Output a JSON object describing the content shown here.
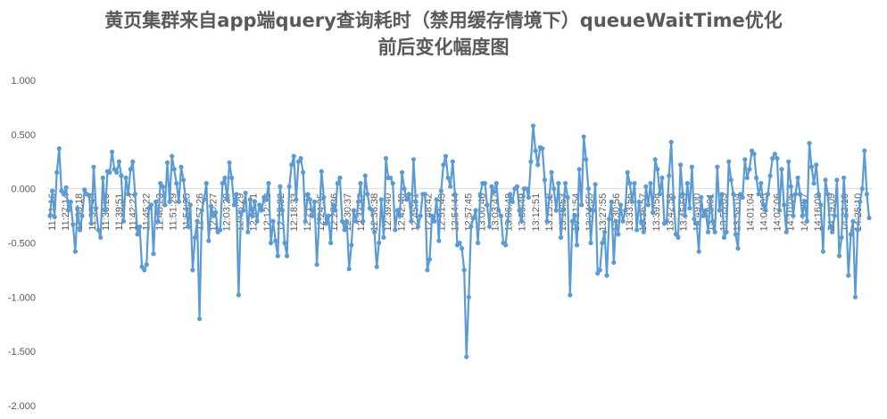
{
  "chart_data": {
    "type": "line",
    "title_line1": "黄页集群来自app端query查询耗时（禁用缓存情境下）queueWaitTime优化",
    "title_line2": "前后变化幅度图",
    "xlabel": "",
    "ylabel": "",
    "ylim": [
      -2.0,
      1.0
    ],
    "yticks": [
      "1.000",
      "0.500",
      "0.000",
      "-0.500",
      "-1.000",
      "-1.500",
      "-2.000"
    ],
    "grid": false,
    "legend": "none",
    "series_color": "#5B9BD5",
    "xtick_labels": [
      "11:21:16",
      "11:27:14",
      "11:30:18",
      "11:33:49",
      "11:36:20",
      "11:39:51",
      "11:42:22",
      "11:45:22",
      "11:48:23",
      "11:51:29",
      "11:54:25",
      "11:57:26",
      "12:00:27",
      "12:03:28",
      "12:06:29",
      "12:09:31",
      "12:12:32",
      "12:15:32",
      "12:18:33",
      "12:21:34",
      "12:24:35",
      "12:27:36",
      "12:30:37",
      "12:33:37",
      "12:36:38",
      "12:39:40",
      "12:42:40",
      "12:45:41",
      "12:48:42",
      "12:51:43",
      "12:54:44",
      "12:57:45",
      "13:00:46",
      "13:03:47",
      "13:06:48",
      "13:09:49",
      "13:12:51",
      "13:15:52",
      "13:18:53",
      "13:21:54",
      "13:24:55",
      "13:27:55",
      "13:30:56",
      "13:33:56",
      "13:36:57",
      "13:39:58",
      "13:42:58",
      "13:45:59",
      "13:49:00",
      "13:52:01",
      "13:55:03",
      "13:58:04",
      "14:01:04",
      "14:04:05",
      "14:07:06",
      "14:10:05",
      "14:13:07",
      "14:16:08",
      "14:19:09",
      "14:22:10",
      "14:25:10"
    ],
    "values": [
      -0.25,
      -0.02,
      -0.26,
      0.15,
      0.37,
      -0.02,
      -0.05,
      0.01,
      -0.2,
      -0.12,
      -0.33,
      -0.58,
      -0.18,
      -0.38,
      -0.25,
      -0.01,
      -0.05,
      -0.06,
      -0.32,
      0.2,
      -0.18,
      -0.38,
      -0.45,
      0.1,
      -0.2,
      0.16,
      0.15,
      0.34,
      0.18,
      0.15,
      0.25,
      0.12,
      -0.3,
      0.1,
      -0.05,
      0.18,
      0.25,
      -0.05,
      -0.42,
      -0.35,
      -0.72,
      -0.75,
      -0.7,
      -0.18,
      -0.15,
      -0.6,
      -0.12,
      -0.3,
      0.05,
      0.02,
      -0.15,
      0.24,
      -0.12,
      0.3,
      0.18,
      0.05,
      -0.12,
      0.2,
      0.08,
      -0.1,
      -0.35,
      -0.15,
      -0.75,
      -0.45,
      -0.3,
      -1.2,
      -0.2,
      -0.1,
      0.05,
      -0.48,
      -0.16,
      -0.25,
      -0.22,
      -0.4,
      -0.38,
      0.05,
      0.1,
      -0.1,
      0.24,
      0.1,
      -0.15,
      -0.05,
      -0.98,
      -0.22,
      -0.2,
      -0.04,
      -0.4,
      -0.1,
      -0.25,
      -0.12,
      -0.3,
      -0.15,
      -0.2,
      -0.08,
      -0.1,
      0.05,
      -0.5,
      -0.3,
      -0.48,
      -0.62,
      0.02,
      -0.2,
      -0.5,
      -0.62,
      0.02,
      0.22,
      0.3,
      -0.1,
      0.25,
      0.28,
      0.15,
      -0.3,
      -0.05,
      -0.1,
      -0.25,
      -0.12,
      -0.7,
      -0.28,
      0.16,
      -0.08,
      -0.32,
      -0.25,
      -0.5,
      -0.15,
      -0.2,
      0.05,
      0.1,
      -0.3,
      -0.38,
      -0.3,
      -0.74,
      -0.52,
      -0.2,
      -0.3,
      -0.12,
      0.05,
      -0.3,
      0.12,
      -0.05,
      -0.18,
      -0.2,
      -0.4,
      -0.72,
      -0.5,
      -0.1,
      -0.45,
      0.28,
      0.1,
      0.1,
      0.05,
      -0.38,
      -0.2,
      -0.25,
      0.15,
      0.0,
      -0.1,
      -0.05,
      -0.3,
      0.27,
      -0.12,
      -0.35,
      -0.25,
      -0.05,
      -0.05,
      -0.75,
      -0.65,
      -0.25,
      -0.3,
      -0.1,
      -0.48,
      -0.02,
      0.22,
      0.3,
      0.1,
      0.02,
      0.25,
      -0.05,
      -0.52,
      -0.5,
      -0.55,
      -0.75,
      -1.55,
      -1.0,
      -0.35,
      -0.27,
      -0.2,
      -0.5,
      -0.05,
      0.05,
      0.05,
      -0.15,
      -0.35,
      0.02,
      -0.03,
      0.05,
      -0.2,
      -0.25,
      -0.5,
      -0.52,
      -0.3,
      -0.05,
      -0.12,
      0.0,
      0.02,
      -0.2,
      -0.3,
      0.0,
      0.0,
      -0.08,
      0.25,
      0.58,
      0.35,
      0.22,
      0.38,
      0.37,
      0.08,
      -0.3,
      -0.08,
      0.15,
      0.0,
      -0.2,
      0.05,
      -0.45,
      -0.2,
      0.05,
      -0.08,
      -0.98,
      -0.3,
      -0.25,
      -0.52,
      0.18,
      -0.15,
      0.48,
      0.27,
      0.0,
      -0.5,
      -0.2,
      0.04,
      -0.78,
      -0.75,
      -0.5,
      -0.4,
      -0.8,
      -0.28,
      -0.12,
      -0.68,
      -0.3,
      -0.42,
      -0.15,
      -0.3,
      -0.2,
      0.15,
      0.05,
      -0.12,
      0.05,
      -0.38,
      -0.12,
      -0.3,
      -0.4,
      0.02,
      -0.15,
      0.05,
      -0.22,
      0.27,
      0.18,
      -0.05,
      0.1,
      -0.32,
      -0.3,
      0.12,
      0.43,
      -0.08,
      -0.42,
      -0.45,
      0.22,
      -0.05,
      -0.25,
      0.05,
      -0.18,
      0.2,
      -0.28,
      -0.32,
      -0.58,
      -0.08,
      -0.25,
      -0.2,
      -0.4,
      -0.08,
      -0.3,
      -0.4,
      0.2,
      -0.2,
      -0.05,
      -0.45,
      -0.4,
      0.25,
      0.08,
      -0.05,
      -0.42,
      -0.55,
      -0.05,
      -0.08,
      0.27,
      0.1,
      0.18,
      0.35,
      0.32,
      0.1,
      -0.05,
      0.05,
      -0.15,
      -0.2,
      -0.05,
      0.12,
      0.28,
      0.32,
      0.28,
      -0.2,
      0.18,
      -0.15,
      -0.4,
      0.25,
      0.02,
      -0.25,
      -0.05,
      0.1,
      -0.05,
      -0.25,
      -0.12,
      -0.3,
      0.42,
      0.2,
      0.05,
      0.22,
      -0.05,
      -0.15,
      -0.58,
      0.08,
      -0.05,
      -0.35,
      -0.4,
      -0.25,
      0.08,
      -0.62,
      -0.45,
      0.1,
      -0.25,
      -0.8,
      -0.42,
      -0.3,
      -1.0,
      -0.38,
      -0.12,
      0.0,
      0.35,
      -0.05,
      -0.27
    ]
  }
}
